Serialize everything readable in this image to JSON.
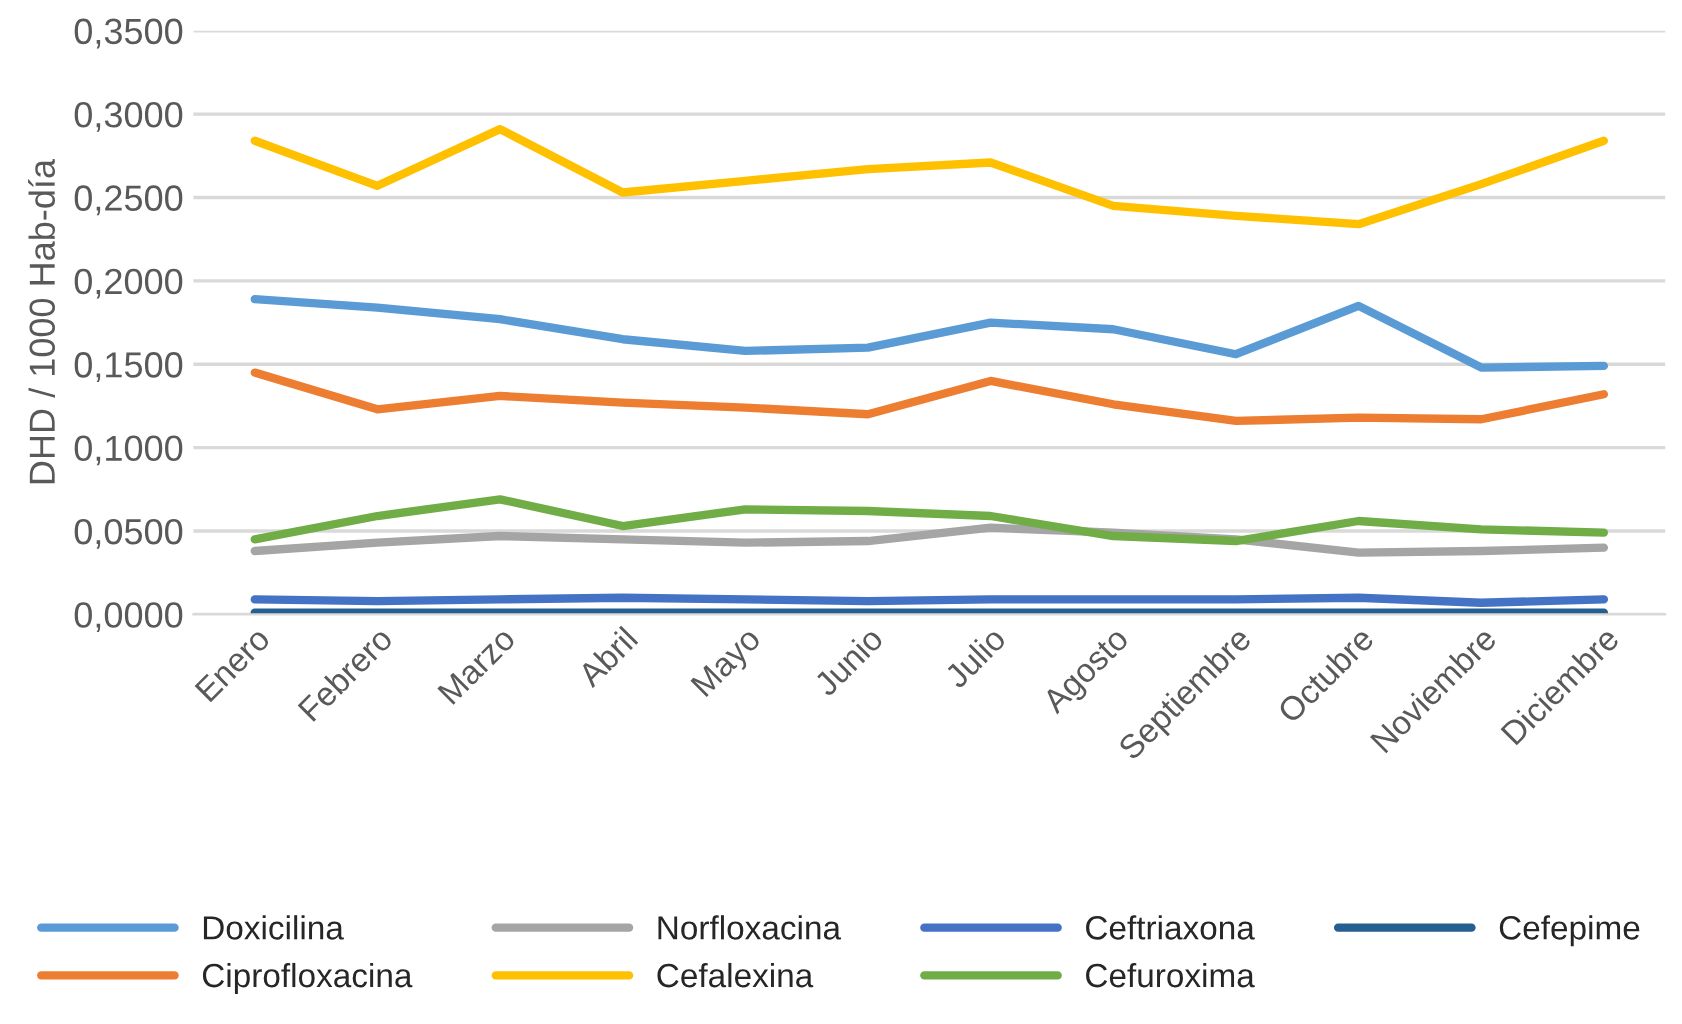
{
  "chart_data": {
    "type": "line",
    "ylabel": "DHD / 1000 Hab-día",
    "categories": [
      "Enero",
      "Febrero",
      "Marzo",
      "Abril",
      "Mayo",
      "Junio",
      "Julio",
      "Agosto",
      "Septiembre",
      "Octubre",
      "Noviembre",
      "Diciembre"
    ],
    "series": [
      {
        "name": "Doxicilina",
        "color": "#5b9bd5",
        "values": [
          0.189,
          0.184,
          0.177,
          0.165,
          0.158,
          0.16,
          0.175,
          0.171,
          0.156,
          0.185,
          0.148,
          0.149
        ]
      },
      {
        "name": "Ciprofloxacina",
        "color": "#ed7d31",
        "values": [
          0.145,
          0.123,
          0.131,
          0.127,
          0.124,
          0.12,
          0.14,
          0.126,
          0.116,
          0.118,
          0.117,
          0.132
        ]
      },
      {
        "name": "Norfloxacina",
        "color": "#a5a5a5",
        "values": [
          0.038,
          0.043,
          0.047,
          0.045,
          0.043,
          0.044,
          0.052,
          0.049,
          0.045,
          0.037,
          0.038,
          0.04
        ]
      },
      {
        "name": "Cefalexina",
        "color": "#ffc000",
        "values": [
          0.284,
          0.257,
          0.291,
          0.253,
          0.26,
          0.267,
          0.271,
          0.245,
          0.239,
          0.234,
          0.258,
          0.284
        ]
      },
      {
        "name": "Ceftriaxona",
        "color": "#4472c4",
        "values": [
          0.009,
          0.008,
          0.009,
          0.01,
          0.009,
          0.008,
          0.009,
          0.009,
          0.009,
          0.01,
          0.007,
          0.009
        ]
      },
      {
        "name": "Cefuroxima",
        "color": "#70ad47",
        "values": [
          0.045,
          0.059,
          0.069,
          0.053,
          0.063,
          0.062,
          0.059,
          0.047,
          0.044,
          0.056,
          0.051,
          0.049
        ]
      },
      {
        "name": "Cefepime",
        "color": "#255e91",
        "values": [
          0.001,
          0.001,
          0.001,
          0.001,
          0.001,
          0.001,
          0.001,
          0.001,
          0.001,
          0.001,
          0.001,
          0.001
        ]
      }
    ],
    "ylim": [
      0,
      0.35
    ],
    "yticks": [
      {
        "value": 0,
        "label": "0,0000"
      },
      {
        "value": 0.05,
        "label": "0,0500"
      },
      {
        "value": 0.1,
        "label": "0,1000"
      },
      {
        "value": 0.15,
        "label": "0,1500"
      },
      {
        "value": 0.2,
        "label": "0,2000"
      },
      {
        "value": 0.25,
        "label": "0,2500"
      },
      {
        "value": 0.3,
        "label": "0,3000"
      },
      {
        "value": 0.35,
        "label": "0,3500"
      }
    ],
    "grid": "y",
    "legend": "bottom",
    "marker": "none",
    "line_style": "solid"
  }
}
